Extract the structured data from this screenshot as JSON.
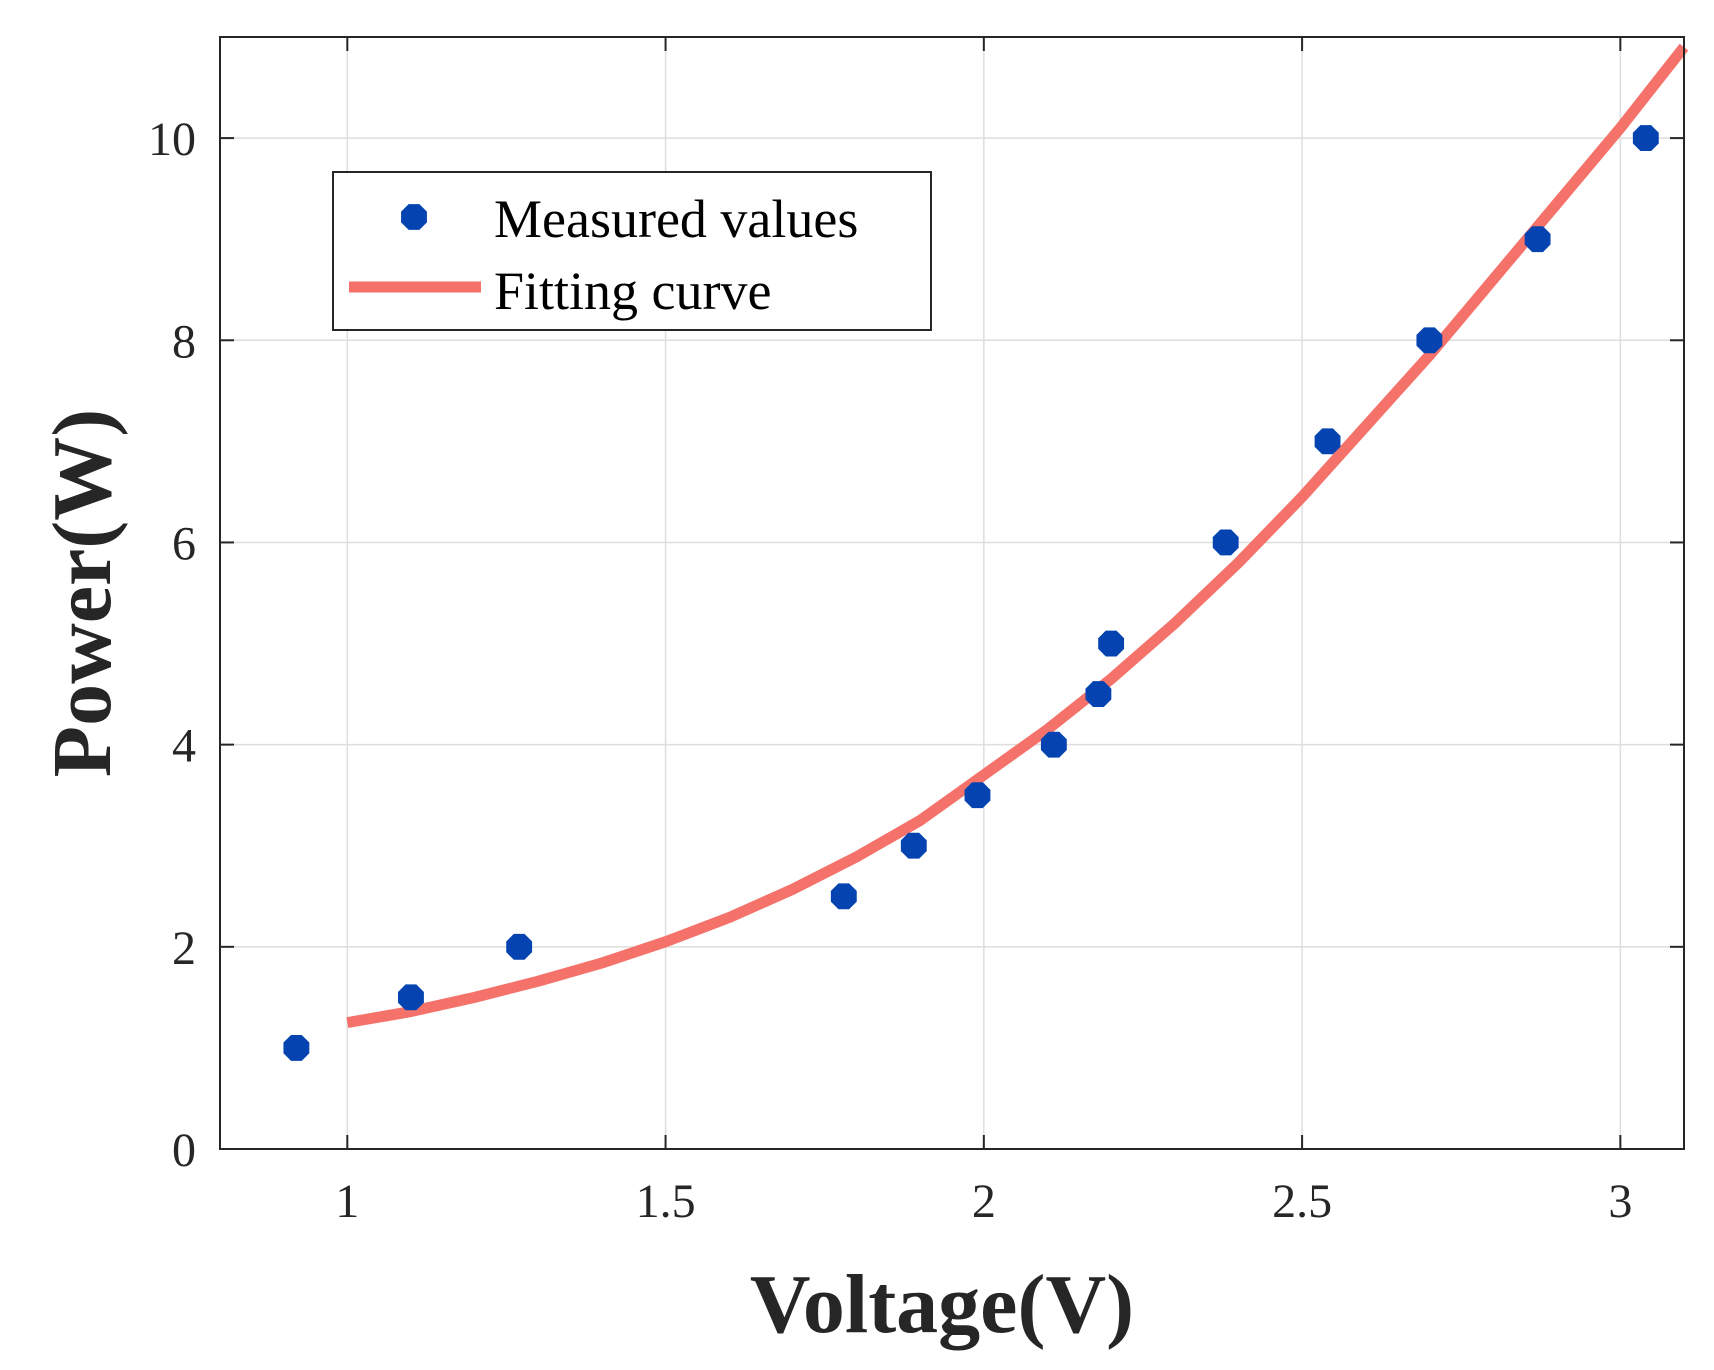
{
  "chart_data": {
    "type": "scatter",
    "title": "",
    "xlabel": "Voltage(V)",
    "ylabel": "Power(W)",
    "xlim": [
      0.8,
      3.1
    ],
    "ylim": [
      0,
      11
    ],
    "x_ticks": [
      1,
      1.5,
      2,
      2.5,
      3
    ],
    "x_tick_labels": [
      "1",
      "1.5",
      "2",
      "2.5",
      "3"
    ],
    "y_ticks": [
      0,
      2,
      4,
      6,
      8,
      10
    ],
    "y_tick_labels": [
      "0",
      "2",
      "4",
      "6",
      "8",
      "10"
    ],
    "grid": true,
    "legend_position": "top-left",
    "series": [
      {
        "name": "Measured values",
        "kind": "scatter",
        "color": "#0443b0",
        "x": [
          0.92,
          1.1,
          1.27,
          1.78,
          1.89,
          1.99,
          2.11,
          2.18,
          2.2,
          2.38,
          2.54,
          2.7,
          2.87,
          3.04
        ],
        "y": [
          1.0,
          1.5,
          2.0,
          2.5,
          3.0,
          3.5,
          4.0,
          4.5,
          5.0,
          6.0,
          7.0,
          8.0,
          9.0,
          10.0
        ]
      },
      {
        "name": "Fitting curve",
        "kind": "line",
        "color": "#f4726a",
        "x": [
          1.0,
          1.1,
          1.2,
          1.3,
          1.4,
          1.5,
          1.6,
          1.7,
          1.8,
          1.9,
          2.0,
          2.1,
          2.2,
          2.3,
          2.4,
          2.5,
          2.6,
          2.7,
          2.8,
          2.9,
          3.0,
          3.1
        ],
        "y": [
          1.25,
          1.36,
          1.5,
          1.66,
          1.84,
          2.05,
          2.29,
          2.57,
          2.89,
          3.25,
          3.7,
          4.15,
          4.65,
          5.2,
          5.8,
          6.45,
          7.15,
          7.85,
          8.6,
          9.35,
          10.1,
          10.9
        ]
      }
    ]
  }
}
